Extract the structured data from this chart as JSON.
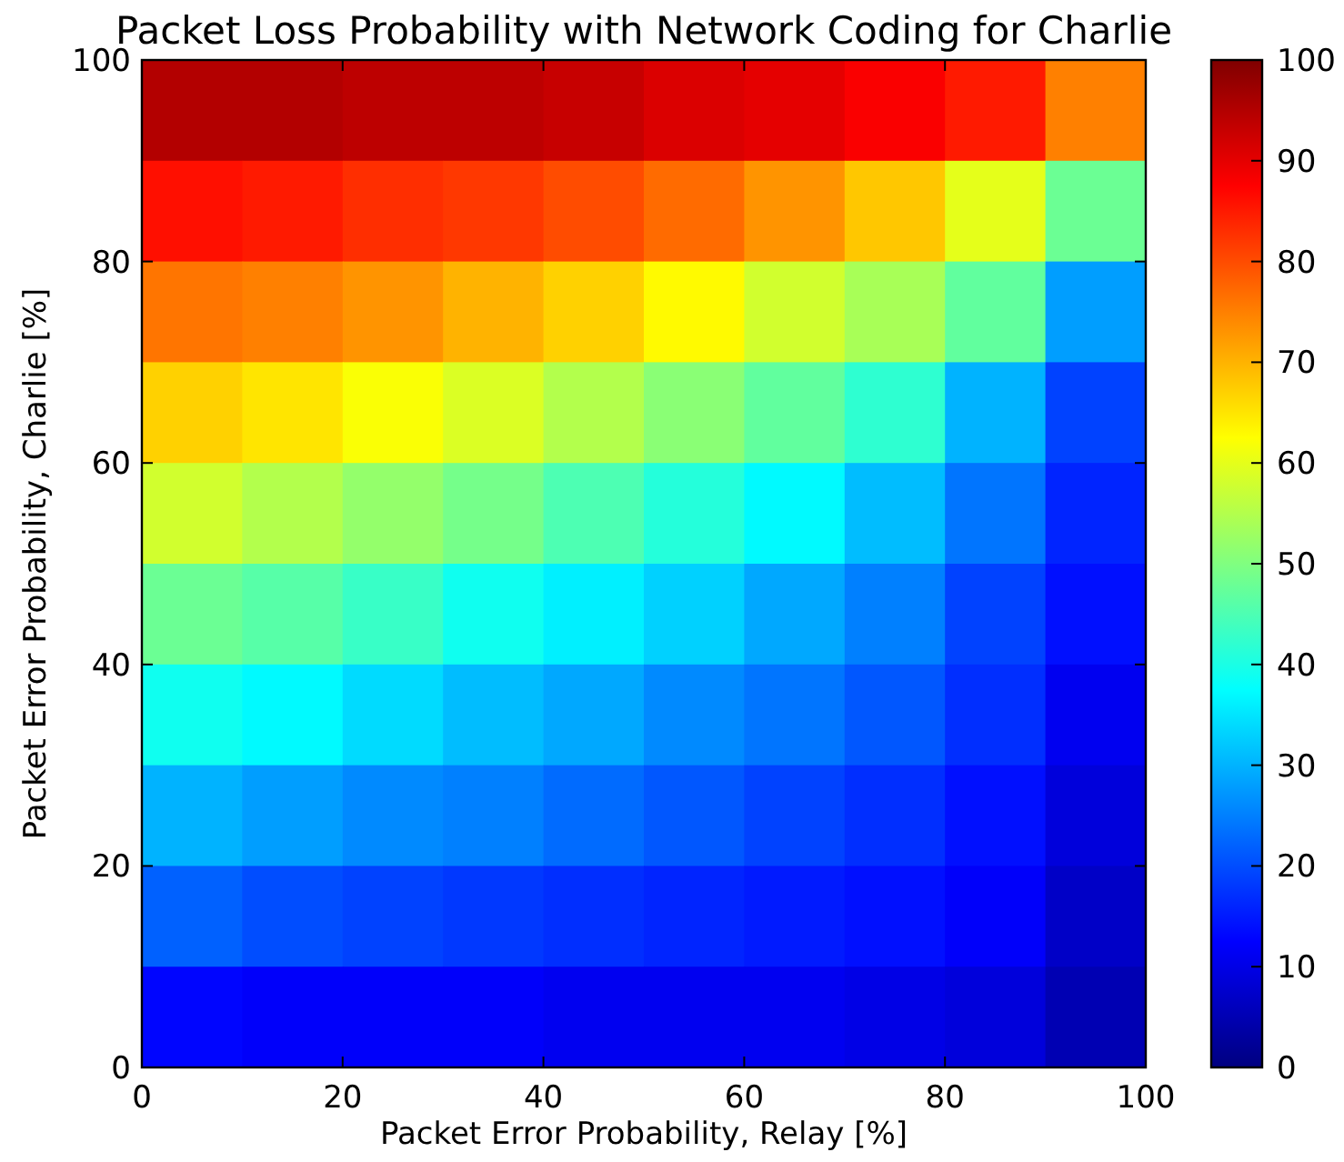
{
  "chart_data": {
    "type": "heatmap",
    "title": "Packet Loss Probability with Network Coding for Charlie",
    "xlabel": "Packet Error Probability, Relay [%]",
    "ylabel": "Packet Error Probability, Charlie [%]",
    "xlim": [
      0,
      100
    ],
    "ylim": [
      0,
      100
    ],
    "xticks": [
      0,
      20,
      40,
      60,
      80,
      100
    ],
    "yticks": [
      0,
      20,
      40,
      60,
      80,
      100
    ],
    "clim": [
      0,
      100
    ],
    "cticks": [
      0,
      10,
      20,
      30,
      40,
      50,
      60,
      70,
      80,
      90,
      100
    ],
    "cells": [
      [
        95,
        95,
        94,
        94,
        93,
        91,
        90,
        88,
        85,
        75
      ],
      [
        86,
        85,
        83,
        82,
        80,
        77,
        73,
        68,
        60,
        48
      ],
      [
        76,
        75,
        73,
        70,
        67,
        63,
        58,
        54,
        47,
        28
      ],
      [
        67,
        65,
        62,
        59,
        55,
        51,
        47,
        42,
        30,
        19
      ],
      [
        58,
        55,
        52,
        49,
        45,
        41,
        37,
        31,
        24,
        16
      ],
      [
        48,
        46,
        43,
        39,
        36,
        33,
        29,
        25,
        19,
        14
      ],
      [
        39,
        37,
        34,
        31,
        29,
        26,
        24,
        21,
        17,
        11
      ],
      [
        30,
        28,
        26,
        25,
        23,
        21,
        19,
        17,
        14,
        9
      ],
      [
        22,
        20,
        19,
        18,
        17,
        16,
        15,
        14,
        12,
        7
      ],
      [
        13,
        12,
        12,
        12,
        11,
        11,
        11,
        10,
        9,
        5
      ]
    ]
  }
}
